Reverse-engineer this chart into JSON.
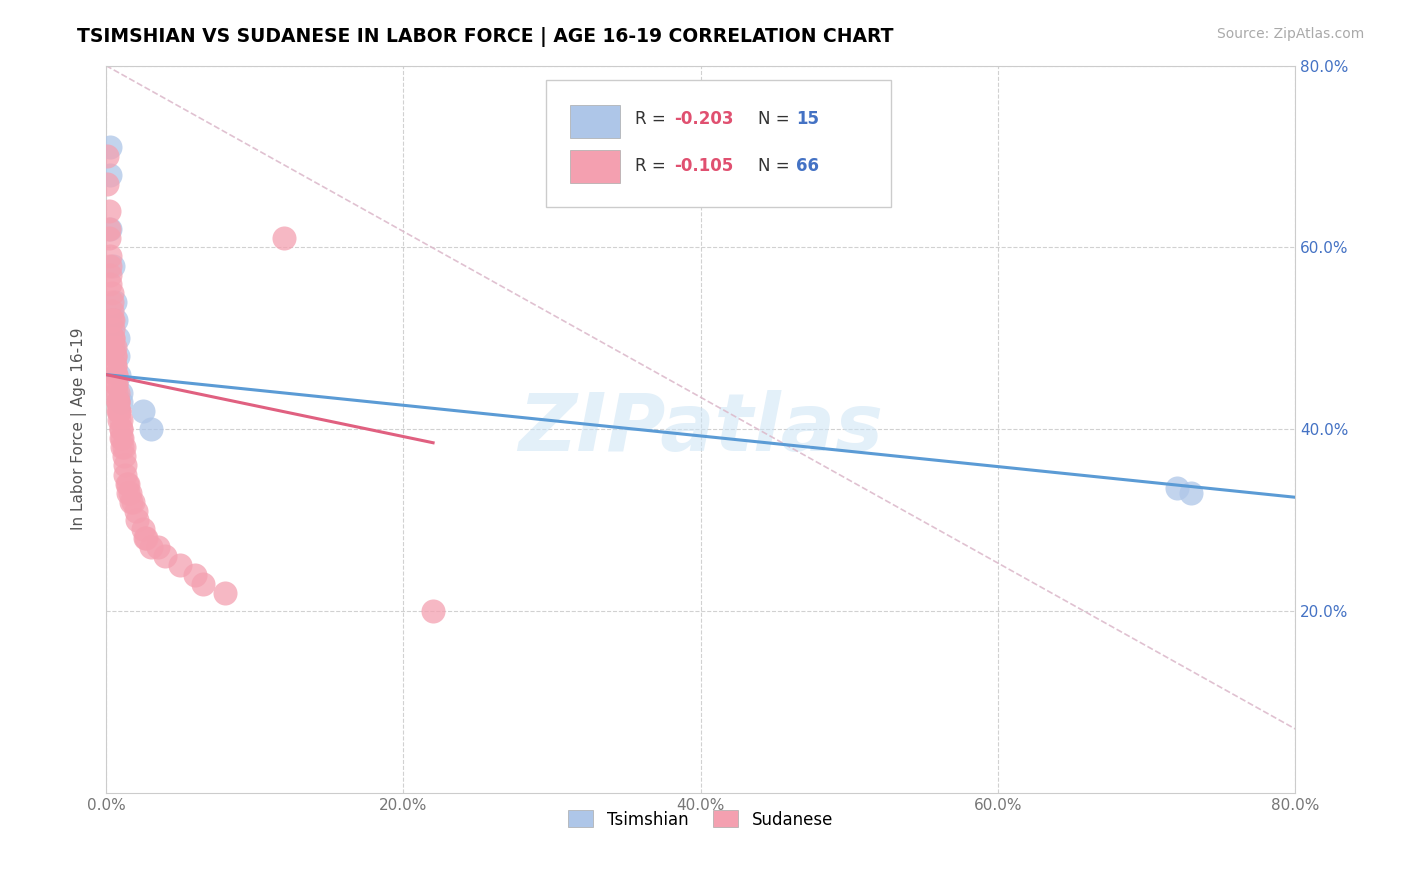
{
  "title": "TSIMSHIAN VS SUDANESE IN LABOR FORCE | AGE 16-19 CORRELATION CHART",
  "source_text": "Source: ZipAtlas.com",
  "ylabel": "In Labor Force | Age 16-19",
  "xlim": [
    0.0,
    0.8
  ],
  "ylim": [
    0.0,
    0.8
  ],
  "xtick_values": [
    0.0,
    0.2,
    0.4,
    0.6,
    0.8
  ],
  "ytick_values": [
    0.2,
    0.4,
    0.6,
    0.8
  ],
  "grid_color": "#cccccc",
  "tsimshian_color": "#aec6e8",
  "sudanese_color": "#f4a0b0",
  "tsimshian_line_color": "#5b9bd5",
  "sudanese_line_color": "#e06080",
  "diagonal_line_color": "#ddbbcc",
  "tsimshian_points": [
    [
      0.003,
      0.71
    ],
    [
      0.003,
      0.68
    ],
    [
      0.003,
      0.62
    ],
    [
      0.005,
      0.58
    ],
    [
      0.006,
      0.54
    ],
    [
      0.007,
      0.52
    ],
    [
      0.008,
      0.5
    ],
    [
      0.008,
      0.48
    ],
    [
      0.009,
      0.46
    ],
    [
      0.01,
      0.44
    ],
    [
      0.01,
      0.43
    ],
    [
      0.025,
      0.42
    ],
    [
      0.03,
      0.4
    ],
    [
      0.72,
      0.335
    ],
    [
      0.73,
      0.33
    ]
  ],
  "sudanese_points": [
    [
      0.001,
      0.7
    ],
    [
      0.001,
      0.67
    ],
    [
      0.002,
      0.64
    ],
    [
      0.002,
      0.62
    ],
    [
      0.002,
      0.61
    ],
    [
      0.003,
      0.59
    ],
    [
      0.003,
      0.58
    ],
    [
      0.003,
      0.57
    ],
    [
      0.003,
      0.56
    ],
    [
      0.004,
      0.55
    ],
    [
      0.004,
      0.54
    ],
    [
      0.004,
      0.53
    ],
    [
      0.004,
      0.52
    ],
    [
      0.005,
      0.52
    ],
    [
      0.005,
      0.51
    ],
    [
      0.005,
      0.5
    ],
    [
      0.005,
      0.5
    ],
    [
      0.005,
      0.49
    ],
    [
      0.006,
      0.49
    ],
    [
      0.006,
      0.48
    ],
    [
      0.006,
      0.48
    ],
    [
      0.006,
      0.47
    ],
    [
      0.006,
      0.47
    ],
    [
      0.007,
      0.46
    ],
    [
      0.007,
      0.46
    ],
    [
      0.007,
      0.45
    ],
    [
      0.007,
      0.45
    ],
    [
      0.007,
      0.44
    ],
    [
      0.008,
      0.44
    ],
    [
      0.008,
      0.43
    ],
    [
      0.008,
      0.43
    ],
    [
      0.008,
      0.43
    ],
    [
      0.008,
      0.42
    ],
    [
      0.009,
      0.42
    ],
    [
      0.009,
      0.42
    ],
    [
      0.009,
      0.41
    ],
    [
      0.01,
      0.41
    ],
    [
      0.01,
      0.4
    ],
    [
      0.01,
      0.4
    ],
    [
      0.01,
      0.39
    ],
    [
      0.011,
      0.39
    ],
    [
      0.011,
      0.38
    ],
    [
      0.012,
      0.38
    ],
    [
      0.012,
      0.37
    ],
    [
      0.013,
      0.36
    ],
    [
      0.013,
      0.35
    ],
    [
      0.014,
      0.34
    ],
    [
      0.015,
      0.34
    ],
    [
      0.015,
      0.33
    ],
    [
      0.016,
      0.33
    ],
    [
      0.017,
      0.32
    ],
    [
      0.018,
      0.32
    ],
    [
      0.02,
      0.31
    ],
    [
      0.021,
      0.3
    ],
    [
      0.025,
      0.29
    ],
    [
      0.026,
      0.28
    ],
    [
      0.027,
      0.28
    ],
    [
      0.03,
      0.27
    ],
    [
      0.035,
      0.27
    ],
    [
      0.04,
      0.26
    ],
    [
      0.05,
      0.25
    ],
    [
      0.06,
      0.24
    ],
    [
      0.065,
      0.23
    ],
    [
      0.08,
      0.22
    ],
    [
      0.12,
      0.61
    ],
    [
      0.22,
      0.2
    ]
  ],
  "tsimshian_line": {
    "x0": 0.0,
    "y0": 0.46,
    "x1": 0.8,
    "y1": 0.325
  },
  "sudanese_line": {
    "x0": 0.0,
    "y0": 0.46,
    "x1": 0.22,
    "y1": 0.385
  },
  "diagonal_line": {
    "x0": 0.0,
    "y0": 0.8,
    "x1": 0.8,
    "y1": 0.07
  },
  "watermark_text": "ZIPatlas",
  "legend_R_color": "#e05070",
  "legend_N_color": "#4472c4",
  "bottom_legend_tsimshian": "Tsimshian",
  "bottom_legend_sudanese": "Sudanese"
}
